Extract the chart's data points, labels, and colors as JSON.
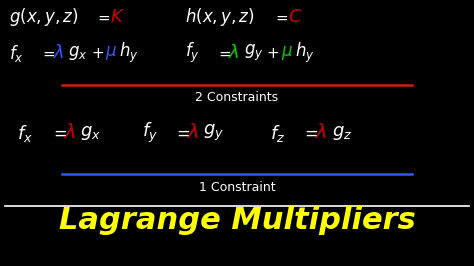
{
  "title": "Lagrange Multipliers",
  "title_color": "#FFFF00",
  "bg_color": "#000000",
  "white": "#FFFFFF",
  "red": "#CC0000",
  "blue": "#3355FF",
  "green": "#00CC00",
  "constraint1_label": "1 Constraint",
  "constraint2_label": "2 Constraints",
  "line1_color": "#3355FF",
  "line2_color": "#CC2200"
}
